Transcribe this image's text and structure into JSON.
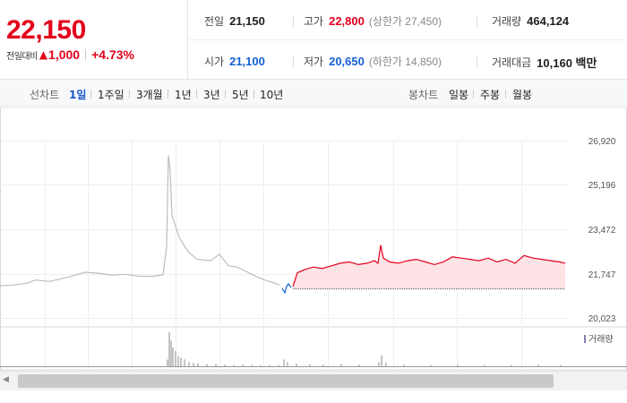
{
  "quote": {
    "current_price": "22,150",
    "diff_label": "전일대비",
    "diff_arrow": "▲",
    "diff_value": "1,000",
    "diff_rate": "+4.73%",
    "stats": {
      "prev_close": {
        "label": "전일",
        "value": "21,150"
      },
      "high": {
        "label": "고가",
        "value": "22,800",
        "sub": "(상한가 27,450)"
      },
      "volume": {
        "label": "거래량",
        "value": "464,124"
      },
      "open": {
        "label": "시가",
        "value": "21,100"
      },
      "low": {
        "label": "저가",
        "value": "20,650",
        "sub": "(하한가 14,850)"
      },
      "trade_amount": {
        "label": "거래대금",
        "value": "10,160 백만"
      }
    }
  },
  "tabs": {
    "line_label": "선차트",
    "line_periods": [
      "1일",
      "1주일",
      "3개월",
      "1년",
      "3년",
      "5년",
      "10년"
    ],
    "active_line_period": 0,
    "candle_label": "봉차트",
    "candle_periods": [
      "일봉",
      "주봉",
      "월봉"
    ]
  },
  "chart_data": {
    "type": "line",
    "title": "",
    "y_ticks": [
      26920,
      25196,
      23472,
      21747,
      20023
    ],
    "y_tick_labels": [
      "26,920",
      "25,196",
      "23,472",
      "21,747",
      "20,023"
    ],
    "ylim": [
      20023,
      26920
    ],
    "prev_close": 21150,
    "grid": true,
    "volume_legend": "거래량",
    "colors": {
      "up": "#e3001b",
      "down": "#1560d6",
      "history": "#bdbdbd",
      "fill": "#fde3e6",
      "volume": "#c5c5c5"
    },
    "history_series": {
      "name": "",
      "points": [
        [
          0,
          21270
        ],
        [
          15,
          21300
        ],
        [
          30,
          21370
        ],
        [
          40,
          21500
        ],
        [
          55,
          21440
        ],
        [
          70,
          21560
        ],
        [
          85,
          21700
        ],
        [
          95,
          21800
        ],
        [
          110,
          21760
        ],
        [
          125,
          21690
        ],
        [
          140,
          21720
        ],
        [
          155,
          21650
        ],
        [
          170,
          21640
        ],
        [
          182,
          21700
        ],
        [
          186,
          22800
        ],
        [
          188,
          26350
        ],
        [
          190,
          25700
        ],
        [
          192,
          24000
        ],
        [
          195,
          23700
        ],
        [
          200,
          23150
        ],
        [
          210,
          22600
        ],
        [
          220,
          22300
        ],
        [
          235,
          22250
        ],
        [
          245,
          22500
        ],
        [
          255,
          22050
        ],
        [
          265,
          22000
        ],
        [
          275,
          21820
        ],
        [
          285,
          21650
        ],
        [
          295,
          21500
        ],
        [
          305,
          21400
        ],
        [
          312,
          21300
        ]
      ]
    },
    "down_series": {
      "name": "",
      "points": [
        [
          315,
          21180
        ],
        [
          318,
          21000
        ],
        [
          320,
          21250
        ],
        [
          322,
          21350
        ],
        [
          325,
          21200
        ]
      ]
    },
    "today_series": {
      "name": "",
      "points": [
        [
          327,
          21250
        ],
        [
          332,
          21780
        ],
        [
          340,
          21900
        ],
        [
          350,
          22000
        ],
        [
          360,
          21950
        ],
        [
          370,
          22050
        ],
        [
          380,
          22150
        ],
        [
          390,
          22200
        ],
        [
          400,
          22100
        ],
        [
          410,
          22150
        ],
        [
          418,
          22250
        ],
        [
          422,
          22150
        ],
        [
          425,
          22850
        ],
        [
          428,
          22350
        ],
        [
          435,
          22200
        ],
        [
          445,
          22150
        ],
        [
          455,
          22250
        ],
        [
          465,
          22300
        ],
        [
          475,
          22200
        ],
        [
          485,
          22100
        ],
        [
          495,
          22200
        ],
        [
          505,
          22400
        ],
        [
          515,
          22350
        ],
        [
          525,
          22300
        ],
        [
          535,
          22250
        ],
        [
          545,
          22350
        ],
        [
          555,
          22200
        ],
        [
          565,
          22300
        ],
        [
          575,
          22150
        ],
        [
          585,
          22450
        ],
        [
          595,
          22350
        ],
        [
          605,
          22300
        ],
        [
          615,
          22250
        ],
        [
          625,
          22200
        ],
        [
          631,
          22150
        ]
      ]
    },
    "volume_bars": [
      [
        186,
        0.2
      ],
      [
        188,
        1.0
      ],
      [
        190,
        0.75
      ],
      [
        192,
        0.55
      ],
      [
        195,
        0.45
      ],
      [
        198,
        0.3
      ],
      [
        201,
        0.25
      ],
      [
        205,
        0.2
      ],
      [
        210,
        0.12
      ],
      [
        215,
        0.1
      ],
      [
        220,
        0.09
      ],
      [
        230,
        0.06
      ],
      [
        240,
        0.07
      ],
      [
        250,
        0.05
      ],
      [
        260,
        0.04
      ],
      [
        270,
        0.05
      ],
      [
        280,
        0.04
      ],
      [
        290,
        0.03
      ],
      [
        300,
        0.04
      ],
      [
        310,
        0.04
      ],
      [
        316,
        0.2
      ],
      [
        320,
        0.12
      ],
      [
        330,
        0.08
      ],
      [
        345,
        0.06
      ],
      [
        360,
        0.05
      ],
      [
        380,
        0.07
      ],
      [
        400,
        0.05
      ],
      [
        422,
        0.12
      ],
      [
        425,
        0.32
      ],
      [
        430,
        0.1
      ],
      [
        450,
        0.05
      ],
      [
        480,
        0.04
      ],
      [
        510,
        0.05
      ],
      [
        540,
        0.04
      ],
      [
        570,
        0.04
      ],
      [
        600,
        0.05
      ],
      [
        625,
        0.04
      ]
    ]
  },
  "scrollbar": {
    "arrow": "◀"
  }
}
